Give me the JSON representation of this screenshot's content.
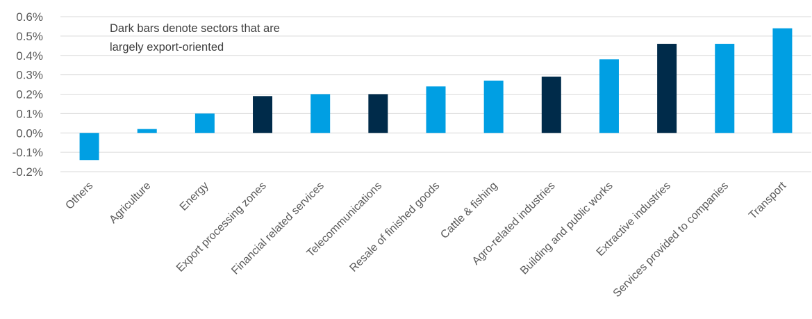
{
  "chart_data": {
    "type": "bar",
    "categories": [
      "Others",
      "Agriculture",
      "Energy",
      "Export processing zones",
      "Financial related services",
      "Telecommunications",
      "Resale of finished goods",
      "Cattle & fishing",
      "Agro-related industries",
      "Building and public works",
      "Extractive industries",
      "Services provided to companies",
      "Transport"
    ],
    "values": [
      -0.14,
      0.02,
      0.1,
      0.19,
      0.2,
      0.2,
      0.24,
      0.27,
      0.29,
      0.38,
      0.46,
      0.46,
      0.54
    ],
    "export_oriented": [
      false,
      false,
      false,
      true,
      false,
      true,
      false,
      false,
      true,
      false,
      true,
      false,
      false
    ],
    "colors": {
      "light": "#009FE3",
      "dark": "#002B4A",
      "grid": "#D9D9D9",
      "text": "#595959"
    },
    "yticks": [
      "0.6%",
      "0.5%",
      "0.4%",
      "0.3%",
      "0.2%",
      "0.1%",
      "0.0%",
      "-0.1%",
      "-0.2%"
    ],
    "ylim": [
      -0.2,
      0.6
    ],
    "annotation": [
      "Dark bars denote sectors that are",
      "largely export-oriented"
    ],
    "grid": true
  }
}
